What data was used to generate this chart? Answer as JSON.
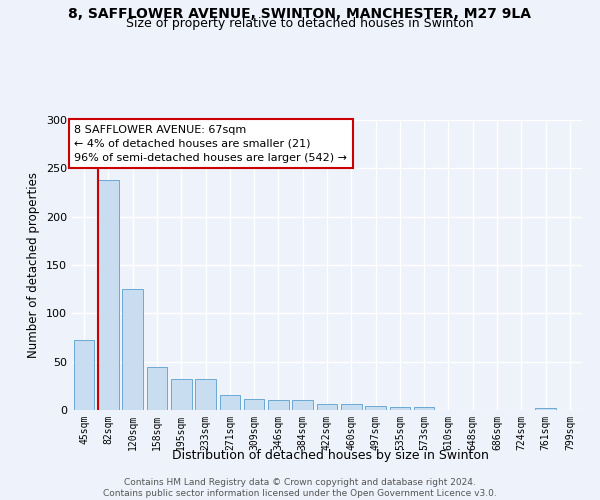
{
  "title_line1": "8, SAFFLOWER AVENUE, SWINTON, MANCHESTER, M27 9LA",
  "title_line2": "Size of property relative to detached houses in Swinton",
  "xlabel": "Distribution of detached houses by size in Swinton",
  "ylabel": "Number of detached properties",
  "categories": [
    "45sqm",
    "82sqm",
    "120sqm",
    "158sqm",
    "195sqm",
    "233sqm",
    "271sqm",
    "309sqm",
    "346sqm",
    "384sqm",
    "422sqm",
    "460sqm",
    "497sqm",
    "535sqm",
    "573sqm",
    "610sqm",
    "648sqm",
    "686sqm",
    "724sqm",
    "761sqm",
    "799sqm"
  ],
  "values": [
    72,
    238,
    125,
    44,
    32,
    32,
    16,
    11,
    10,
    10,
    6,
    6,
    4,
    3,
    3,
    0,
    0,
    0,
    0,
    2,
    0
  ],
  "bar_color": "#c9ddf0",
  "bar_edge_color": "#6aaad4",
  "highlight_line_color": "#cc0000",
  "annotation_box_edge_color": "#cc0000",
  "annotation_text_line1": "8 SAFFLOWER AVENUE: 67sqm",
  "annotation_text_line2": "← 4% of detached houses are smaller (21)",
  "annotation_text_line3": "96% of semi-detached houses are larger (542) →",
  "ylim": [
    0,
    300
  ],
  "yticks": [
    0,
    50,
    100,
    150,
    200,
    250,
    300
  ],
  "footer_text": "Contains HM Land Registry data © Crown copyright and database right 2024.\nContains public sector information licensed under the Open Government Licence v3.0.",
  "background_color": "#eef2fa",
  "grid_color": "#ffffff",
  "fig_width": 6.0,
  "fig_height": 5.0
}
